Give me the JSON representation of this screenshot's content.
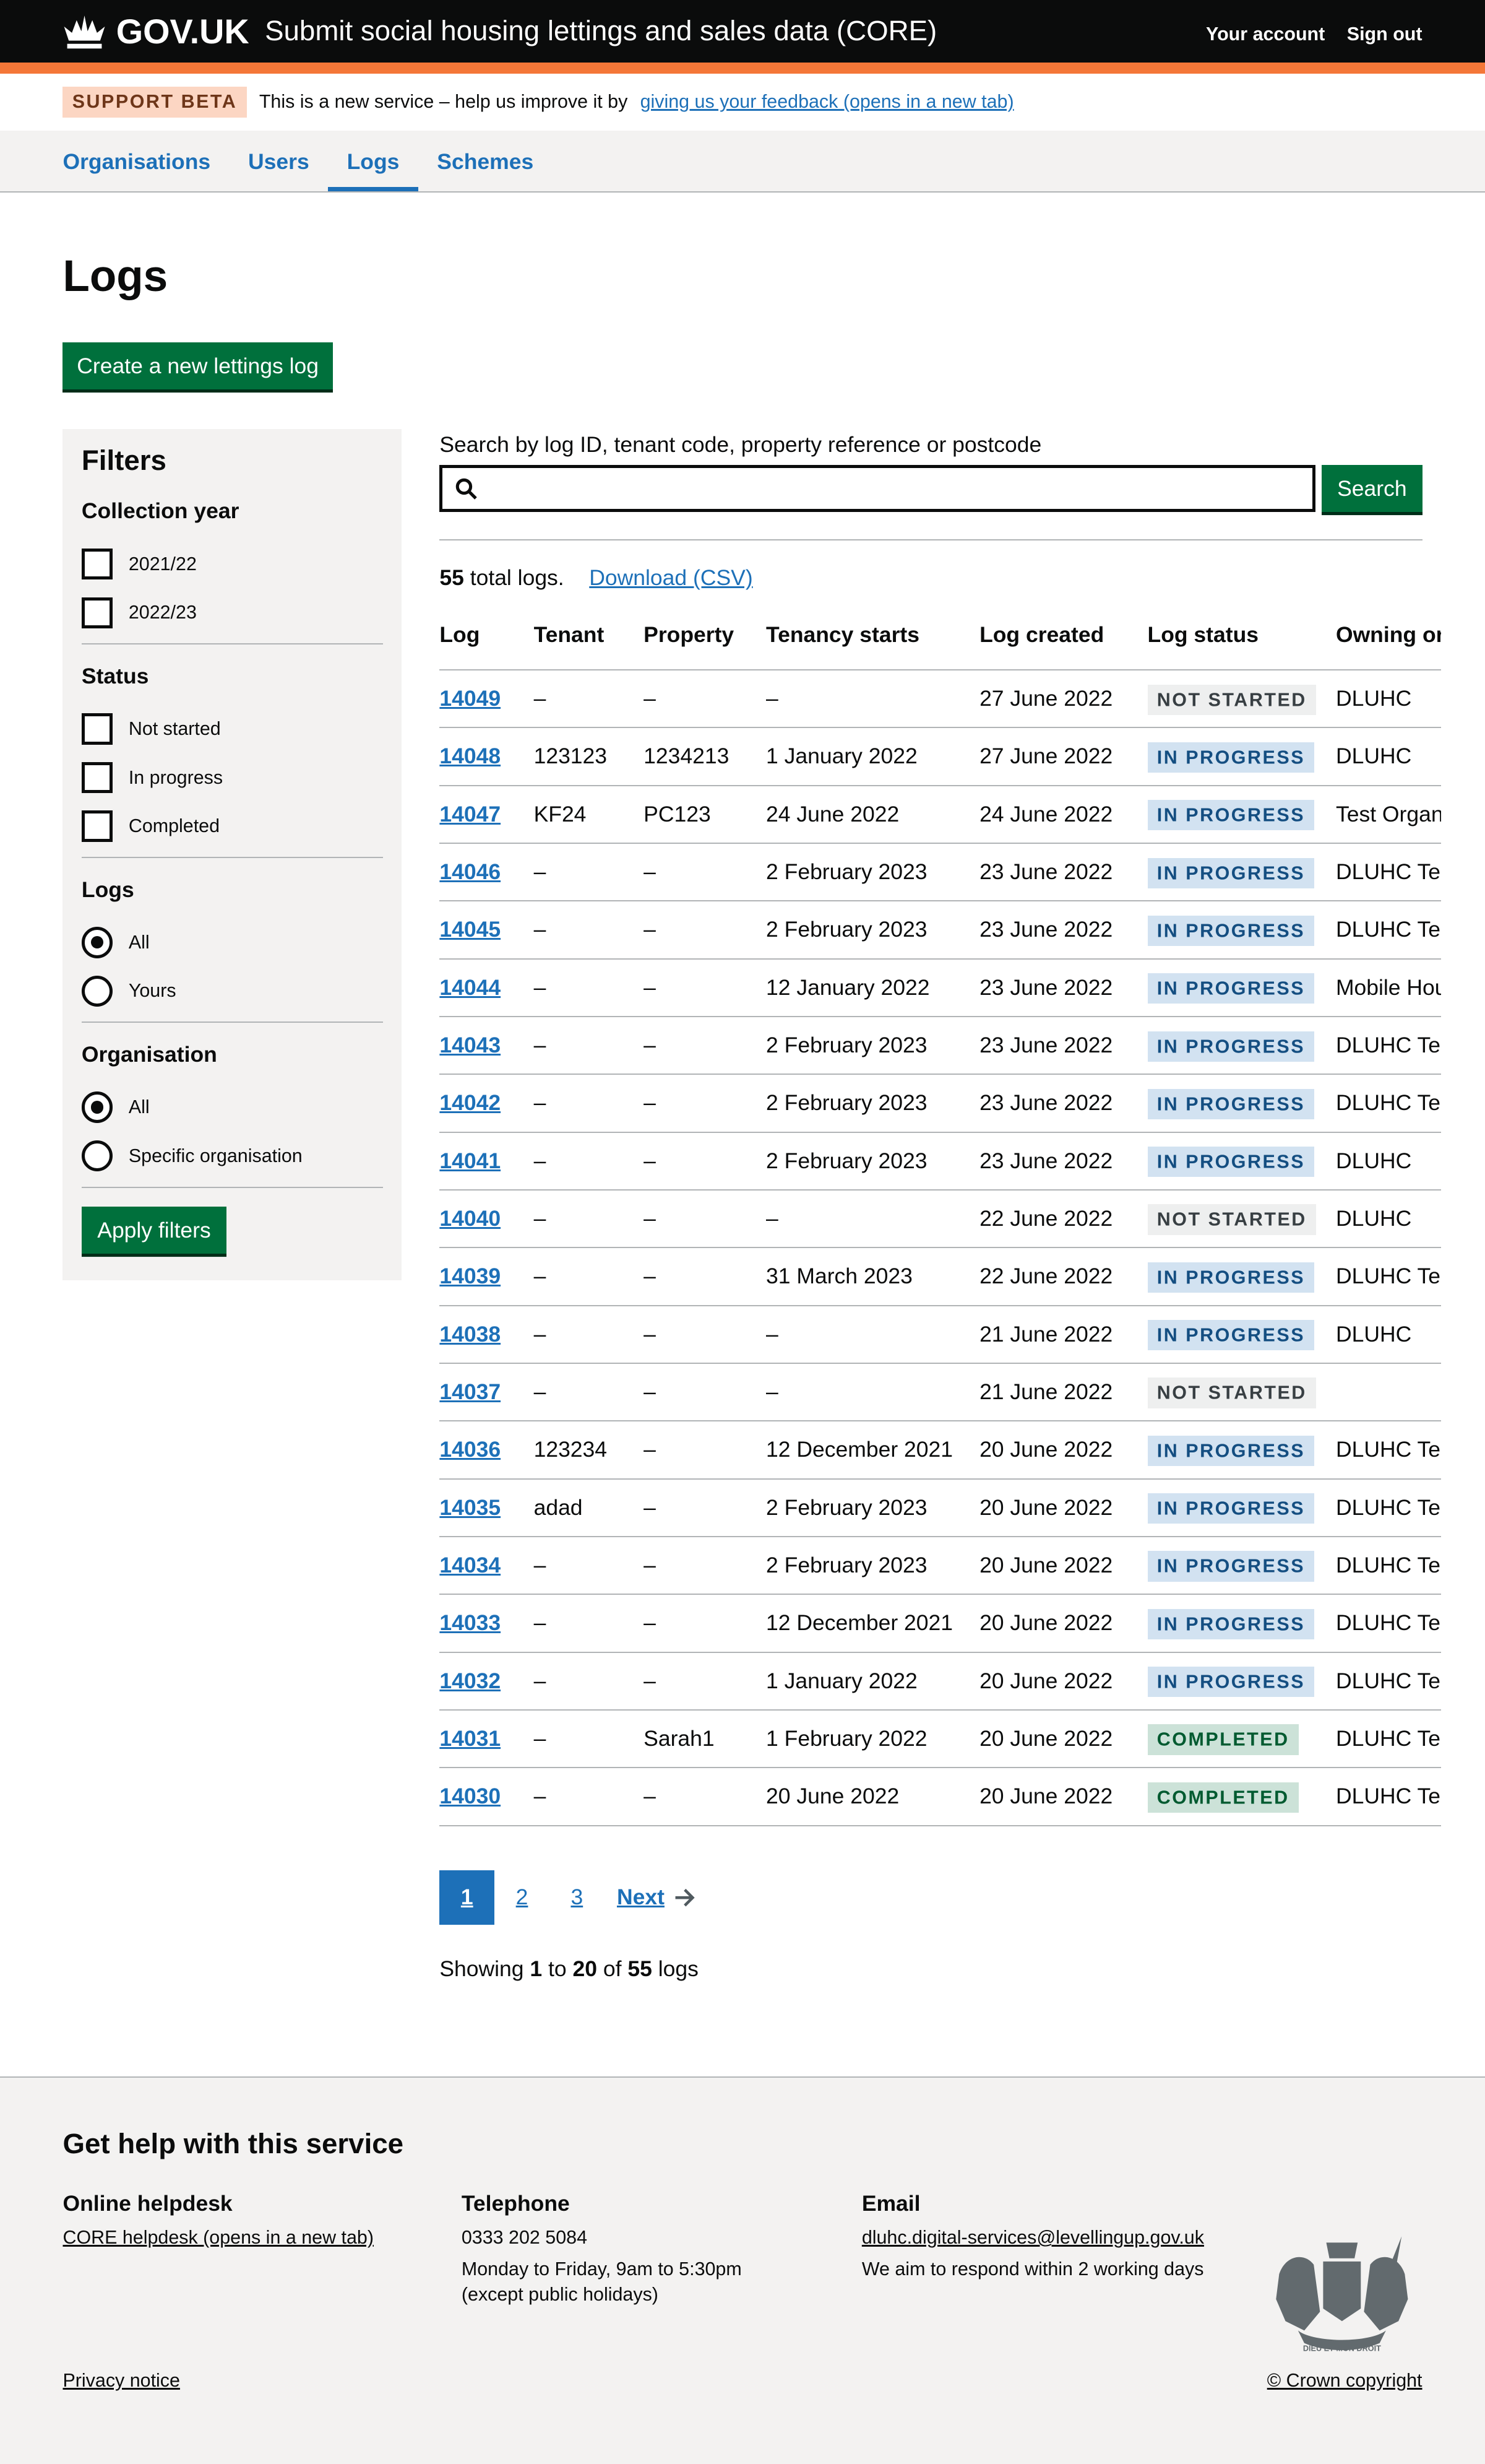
{
  "header": {
    "logo": "GOV.UK",
    "service": "Submit social housing lettings and sales data (CORE)",
    "your_account": "Your account",
    "sign_out": "Sign out"
  },
  "banner": {
    "tag": "SUPPORT BETA",
    "text": "This is a new service – help us improve it by",
    "link": "giving us your feedback (opens in a new tab)"
  },
  "nav": [
    {
      "label": "Organisations"
    },
    {
      "label": "Users"
    },
    {
      "label": "Logs",
      "current": true
    },
    {
      "label": "Schemes"
    }
  ],
  "page": {
    "title": "Logs",
    "create_button": "Create a new lettings log"
  },
  "filters": {
    "title": "Filters",
    "collection_year": {
      "label": "Collection year",
      "options": [
        "2021/22",
        "2022/23"
      ]
    },
    "status": {
      "label": "Status",
      "options": [
        "Not started",
        "In progress",
        "Completed"
      ]
    },
    "logs": {
      "label": "Logs",
      "options": [
        "All",
        "Yours"
      ],
      "selected": "All"
    },
    "organisation": {
      "label": "Organisation",
      "options": [
        "All",
        "Specific organisation"
      ],
      "selected": "All"
    },
    "apply": "Apply filters"
  },
  "search": {
    "label": "Search by log ID, tenant code, property reference or postcode",
    "value": "",
    "button": "Search"
  },
  "summary": {
    "count": "55",
    "text": " total logs.",
    "download": "Download (CSV)"
  },
  "colors": {
    "not_started": "#eeefef",
    "in_progress": "#d2e2f1",
    "completed": "#cce2d8",
    "accent": "#1d70b8",
    "button": "#00703c",
    "brand": "#f47738"
  },
  "table": {
    "headers": [
      "Log",
      "Tenant",
      "Property",
      "Tenancy starts",
      "Log created",
      "Log status",
      "Owning or"
    ],
    "rows": [
      [
        "14049",
        "–",
        "–",
        "–",
        "27 June 2022",
        "NOT STARTED",
        "DLUHC"
      ],
      [
        "14048",
        "123123",
        "1234213",
        "1 January 2022",
        "27 June 2022",
        "IN PROGRESS",
        "DLUHC"
      ],
      [
        "14047",
        "KF24",
        "PC123",
        "24 June 2022",
        "24 June 2022",
        "IN PROGRESS",
        "Test Organ"
      ],
      [
        "14046",
        "–",
        "–",
        "2 February 2023",
        "23 June 2022",
        "IN PROGRESS",
        "DLUHC Tes"
      ],
      [
        "14045",
        "–",
        "–",
        "2 February 2023",
        "23 June 2022",
        "IN PROGRESS",
        "DLUHC Tes"
      ],
      [
        "14044",
        "–",
        "–",
        "12 January 2022",
        "23 June 2022",
        "IN PROGRESS",
        "Mobile Hou"
      ],
      [
        "14043",
        "–",
        "–",
        "2 February 2023",
        "23 June 2022",
        "IN PROGRESS",
        "DLUHC Tes"
      ],
      [
        "14042",
        "–",
        "–",
        "2 February 2023",
        "23 June 2022",
        "IN PROGRESS",
        "DLUHC Tes"
      ],
      [
        "14041",
        "–",
        "–",
        "2 February 2023",
        "23 June 2022",
        "IN PROGRESS",
        "DLUHC"
      ],
      [
        "14040",
        "–",
        "–",
        "–",
        "22 June 2022",
        "NOT STARTED",
        "DLUHC"
      ],
      [
        "14039",
        "–",
        "–",
        "31 March 2023",
        "22 June 2022",
        "IN PROGRESS",
        "DLUHC Tes"
      ],
      [
        "14038",
        "–",
        "–",
        "–",
        "21 June 2022",
        "IN PROGRESS",
        "DLUHC"
      ],
      [
        "14037",
        "–",
        "–",
        "–",
        "21 June 2022",
        "NOT STARTED",
        ""
      ],
      [
        "14036",
        "123234",
        "–",
        "12 December 2021",
        "20 June 2022",
        "IN PROGRESS",
        "DLUHC Tes"
      ],
      [
        "14035",
        "adad",
        "–",
        "2 February 2023",
        "20 June 2022",
        "IN PROGRESS",
        "DLUHC Tes"
      ],
      [
        "14034",
        "–",
        "–",
        "2 February 2023",
        "20 June 2022",
        "IN PROGRESS",
        "DLUHC Tes"
      ],
      [
        "14033",
        "–",
        "–",
        "12 December 2021",
        "20 June 2022",
        "IN PROGRESS",
        "DLUHC Tes"
      ],
      [
        "14032",
        "–",
        "–",
        "1 January 2022",
        "20 June 2022",
        "IN PROGRESS",
        "DLUHC Tes"
      ],
      [
        "14031",
        "–",
        "Sarah1",
        "1 February 2022",
        "20 June 2022",
        "COMPLETED",
        "DLUHC Tes"
      ],
      [
        "14030",
        "–",
        "–",
        "20 June 2022",
        "20 June 2022",
        "COMPLETED",
        "DLUHC Tes"
      ]
    ]
  },
  "pagination": {
    "pages": [
      "1",
      "2",
      "3"
    ],
    "current": "1",
    "next": "Next"
  },
  "showing": {
    "prefix": "Showing ",
    "from": "1",
    "to_word": " to ",
    "to": "20",
    "of_word": " of ",
    "total": "55",
    "suffix": " logs"
  },
  "footer": {
    "title": "Get help with this service",
    "helpdesk": {
      "heading": "Online helpdesk",
      "link": "CORE helpdesk (opens in a new tab)"
    },
    "telephone": {
      "heading": "Telephone",
      "number": "0333 202 5084",
      "hours": "Monday to Friday, 9am to 5:30pm",
      "note": "(except public holidays)"
    },
    "email": {
      "heading": "Email",
      "address": "dluhc.digital-services@levellingup.gov.uk",
      "note": "We aim to respond within 2 working days"
    },
    "privacy": "Privacy notice",
    "copyright": "© Crown copyright",
    "crest_motto": "DIEU ET MON DROIT"
  }
}
